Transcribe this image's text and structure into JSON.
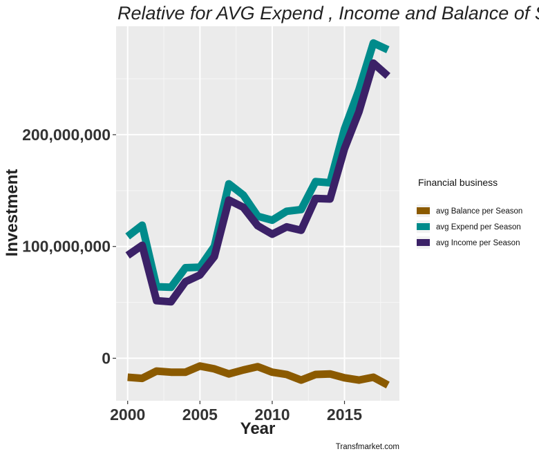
{
  "chart_data": {
    "type": "line",
    "title": "Relative  for AVG Expend , Income and Balance of S",
    "xlabel": "Year",
    "ylabel": "Investment",
    "caption": "Transfmarket.com",
    "xlim": [
      1999.2,
      2018.8
    ],
    "ylim": [
      -38000000,
      297000000
    ],
    "x_ticks": [
      2000,
      2005,
      2010,
      2015
    ],
    "x_tick_labels": [
      "2000",
      "2005",
      "2010",
      "2015"
    ],
    "y_ticks": [
      0,
      100000000,
      200000000
    ],
    "y_tick_labels": [
      "0",
      "100,000,000",
      "200,000,000"
    ],
    "grid": true,
    "legend_position": "right",
    "legend_title": "Financial business",
    "x": [
      2000,
      2001,
      2002,
      2003,
      2004,
      2005,
      2006,
      2007,
      2008,
      2009,
      2010,
      2011,
      2012,
      2013,
      2014,
      2015,
      2016,
      2017,
      2018
    ],
    "series": [
      {
        "name": "avg Balance per Season",
        "color": "#8B5A00",
        "values": [
          -17000000,
          -18000000,
          -11500000,
          -12500000,
          -12500000,
          -7000000,
          -9500000,
          -14000000,
          -10500000,
          -7500000,
          -12500000,
          -14500000,
          -19500000,
          -14500000,
          -14000000,
          -17500000,
          -19500000,
          -17000000,
          -24000000
        ]
      },
      {
        "name": "avg Expend per Season",
        "color": "#008B8B",
        "values": [
          109000000,
          119000000,
          64000000,
          63500000,
          81000000,
          81500000,
          100000000,
          156000000,
          146000000,
          127000000,
          123500000,
          131500000,
          133000000,
          158000000,
          157000000,
          205000000,
          240000000,
          282000000,
          276000000
        ]
      },
      {
        "name": "avg Income per Season",
        "color": "#3B2167",
        "values": [
          92000000,
          101000000,
          51500000,
          50500000,
          68500000,
          74500000,
          91000000,
          141500000,
          135000000,
          118500000,
          111000000,
          117500000,
          114500000,
          143000000,
          142500000,
          187500000,
          220500000,
          264000000,
          252500000
        ]
      }
    ]
  }
}
